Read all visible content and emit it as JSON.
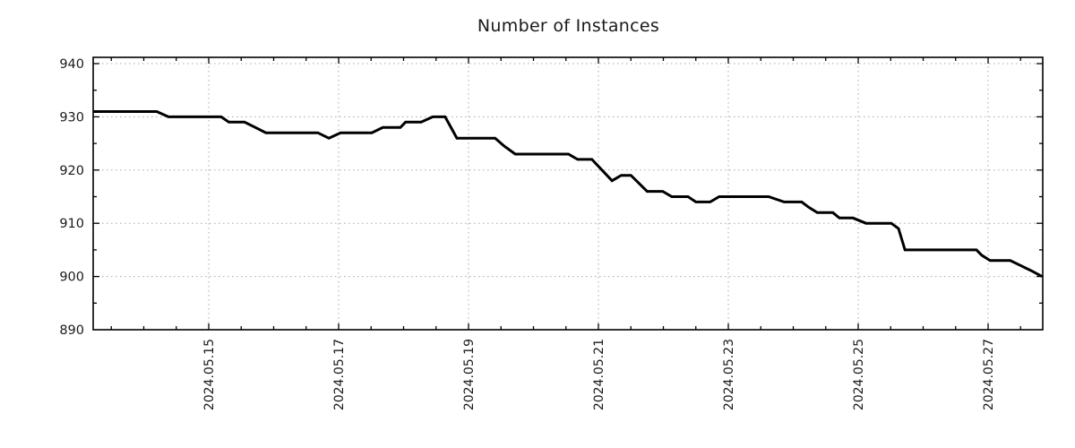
{
  "chart_data": {
    "type": "line",
    "title": "Number of Instances",
    "xlabel": "",
    "ylabel": "",
    "legend": "none",
    "grid": "dotted",
    "background_color": "#ffffff",
    "line_color": "#000000",
    "grid_color": "#a8a8a8",
    "axis_color": "#000000",
    "text_color": "#1a1a1a",
    "ylim": [
      890,
      941.5
    ],
    "xlim_days": [
      13.22,
      27.84
    ],
    "y_ticks": [
      890,
      900,
      910,
      920,
      930,
      940
    ],
    "y_minor_step": 5,
    "x_minor_step_days": 0.5,
    "x_tick_days": [
      15,
      17,
      19,
      21,
      23,
      25,
      27
    ],
    "x_tick_labels": [
      "2024.05.15",
      "2024.05.17",
      "2024.05.19",
      "2024.05.21",
      "2024.05.23",
      "2024.05.25",
      "2024.05.27"
    ],
    "series": [
      {
        "name": "instances",
        "points": [
          [
            13.22,
            931
          ],
          [
            14.2,
            931
          ],
          [
            14.38,
            930
          ],
          [
            15.19,
            930
          ],
          [
            15.31,
            929
          ],
          [
            15.55,
            929
          ],
          [
            15.72,
            928
          ],
          [
            15.88,
            927
          ],
          [
            16.68,
            927
          ],
          [
            16.85,
            926
          ],
          [
            17.03,
            927
          ],
          [
            17.51,
            927
          ],
          [
            17.68,
            928
          ],
          [
            17.95,
            928
          ],
          [
            18.03,
            929
          ],
          [
            18.27,
            929
          ],
          [
            18.45,
            930
          ],
          [
            18.64,
            930
          ],
          [
            18.82,
            926
          ],
          [
            19.41,
            926
          ],
          [
            19.55,
            924.5
          ],
          [
            19.72,
            923
          ],
          [
            20.54,
            923
          ],
          [
            20.68,
            922
          ],
          [
            20.9,
            922
          ],
          [
            21.21,
            918
          ],
          [
            21.35,
            919
          ],
          [
            21.5,
            919
          ],
          [
            21.75,
            916
          ],
          [
            21.99,
            916
          ],
          [
            22.13,
            915
          ],
          [
            22.38,
            915
          ],
          [
            22.5,
            914
          ],
          [
            22.72,
            914
          ],
          [
            22.86,
            915
          ],
          [
            23.62,
            915
          ],
          [
            23.86,
            914
          ],
          [
            24.13,
            914
          ],
          [
            24.24,
            913
          ],
          [
            24.37,
            912
          ],
          [
            24.61,
            912
          ],
          [
            24.71,
            911
          ],
          [
            24.92,
            911
          ],
          [
            25.12,
            910
          ],
          [
            25.51,
            910
          ],
          [
            25.62,
            909
          ],
          [
            25.72,
            905
          ],
          [
            26.82,
            905
          ],
          [
            26.9,
            904
          ],
          [
            27.03,
            903
          ],
          [
            27.34,
            903
          ],
          [
            27.51,
            902
          ],
          [
            27.68,
            901
          ],
          [
            27.83,
            900
          ]
        ]
      }
    ]
  }
}
